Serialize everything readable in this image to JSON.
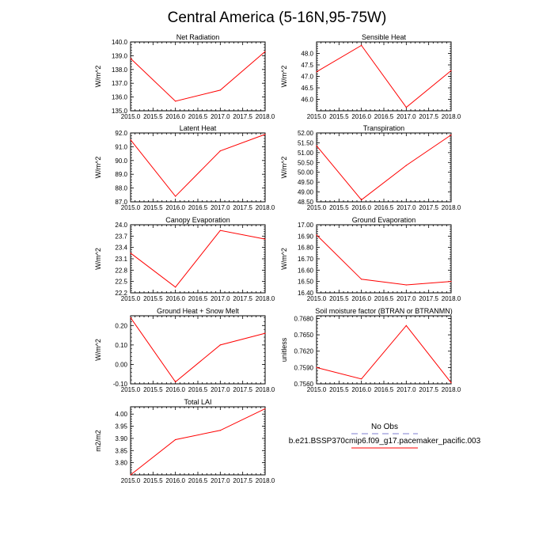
{
  "title": "Central America (5-16N,95-75W)",
  "colors": {
    "model": "#ff0000",
    "obs": "#a9a9e0",
    "axis": "#000000"
  },
  "legend": {
    "obs_label": "No Obs",
    "model_label": "b.e21.BSSP370cmip6.f09_g17.pacemaker_pacific.003"
  },
  "x_ticks": [
    "2015.0",
    "2015.5",
    "2016.0",
    "2016.5",
    "2017.0",
    "2017.5",
    "2018.0"
  ],
  "chart_data": [
    {
      "type": "line",
      "title": "Net Radiation",
      "ylabel": "W/m^2",
      "x": [
        2015,
        2016,
        2017,
        2018
      ],
      "xlim": [
        2015,
        2018
      ],
      "ylim": [
        135.0,
        140.0
      ],
      "yticks": [
        "135.0",
        "136.0",
        "137.0",
        "138.0",
        "139.0",
        "140.0"
      ],
      "series": [
        {
          "values": [
            138.8,
            135.7,
            136.5,
            139.3
          ]
        }
      ]
    },
    {
      "type": "line",
      "title": "Sensible Heat",
      "ylabel": "W/m^2",
      "x": [
        2015,
        2016,
        2017,
        2018
      ],
      "xlim": [
        2015,
        2018
      ],
      "ylim": [
        45.5,
        48.5
      ],
      "yticks": [
        "46.0",
        "46.5",
        "47.0",
        "47.5",
        "48.0"
      ],
      "series": [
        {
          "values": [
            47.2,
            48.35,
            45.65,
            47.25
          ]
        }
      ]
    },
    {
      "type": "line",
      "title": "Latent Heat",
      "ylabel": "W/m^2",
      "x": [
        2015,
        2016,
        2017,
        2018
      ],
      "xlim": [
        2015,
        2018
      ],
      "ylim": [
        87.0,
        92.0
      ],
      "yticks": [
        "87.0",
        "88.0",
        "89.0",
        "90.0",
        "91.0",
        "92.0"
      ],
      "series": [
        {
          "values": [
            91.5,
            87.4,
            90.7,
            91.9
          ]
        }
      ]
    },
    {
      "type": "line",
      "title": "Transpiration",
      "ylabel": "W/m^2",
      "x": [
        2015,
        2016,
        2017,
        2018
      ],
      "xlim": [
        2015,
        2018
      ],
      "ylim": [
        48.5,
        52.0
      ],
      "yticks": [
        "48.50",
        "49.00",
        "49.50",
        "50.00",
        "50.50",
        "51.00",
        "51.50",
        "52.00"
      ],
      "series": [
        {
          "values": [
            51.35,
            48.6,
            50.35,
            51.9
          ]
        }
      ]
    },
    {
      "type": "line",
      "title": "Canopy Evaporation",
      "ylabel": "W/m^2",
      "x": [
        2015,
        2016,
        2017,
        2018
      ],
      "xlim": [
        2015,
        2018
      ],
      "ylim": [
        22.2,
        24.0
      ],
      "yticks": [
        "22.2",
        "22.5",
        "22.8",
        "23.1",
        "23.4",
        "23.7",
        "24.0"
      ],
      "series": [
        {
          "values": [
            23.25,
            22.35,
            23.85,
            23.62
          ]
        }
      ]
    },
    {
      "type": "line",
      "title": "Ground Evaporation",
      "ylabel": "W/m^2",
      "x": [
        2015,
        2016,
        2017,
        2018
      ],
      "xlim": [
        2015,
        2018
      ],
      "ylim": [
        16.4,
        17.0
      ],
      "yticks": [
        "16.40",
        "16.50",
        "16.60",
        "16.70",
        "16.80",
        "16.90",
        "17.00"
      ],
      "series": [
        {
          "values": [
            16.91,
            16.52,
            16.47,
            16.5
          ]
        }
      ]
    },
    {
      "type": "line",
      "title": "Ground Heat + Snow Melt",
      "ylabel": "W/m^2",
      "x": [
        2015,
        2016,
        2017,
        2018
      ],
      "xlim": [
        2015,
        2018
      ],
      "ylim": [
        -0.1,
        0.25
      ],
      "yticks": [
        "-0.10",
        "0.00",
        "0.10",
        "0.20"
      ],
      "ytick_values": [
        -0.1,
        0.0,
        0.1,
        0.2
      ],
      "series": [
        {
          "values": [
            0.24,
            -0.09,
            0.1,
            0.16
          ]
        }
      ]
    },
    {
      "type": "line",
      "title": "Soil moisture factor (BTRAN or BTRANMN)",
      "ylabel": "unitless",
      "x": [
        2015,
        2016,
        2017,
        2018
      ],
      "xlim": [
        2015,
        2018
      ],
      "ylim": [
        0.756,
        0.7685
      ],
      "yticks": [
        "0.7560",
        "0.7590",
        "0.7620",
        "0.7650",
        "0.7680"
      ],
      "ytick_values": [
        0.756,
        0.759,
        0.762,
        0.765,
        0.768
      ],
      "series": [
        {
          "values": [
            0.759,
            0.7569,
            0.7667,
            0.7562
          ]
        }
      ]
    },
    {
      "type": "line",
      "title": "Total LAI",
      "ylabel": "m2/m2",
      "x": [
        2015,
        2016,
        2017,
        2018
      ],
      "xlim": [
        2015,
        2018
      ],
      "ylim": [
        3.75,
        4.03
      ],
      "yticks": [
        "3.80",
        "3.85",
        "3.90",
        "3.95",
        "4.00"
      ],
      "ytick_values": [
        3.8,
        3.85,
        3.9,
        3.95,
        4.0
      ],
      "series": [
        {
          "values": [
            3.75,
            3.895,
            3.933,
            4.022
          ]
        }
      ]
    }
  ]
}
